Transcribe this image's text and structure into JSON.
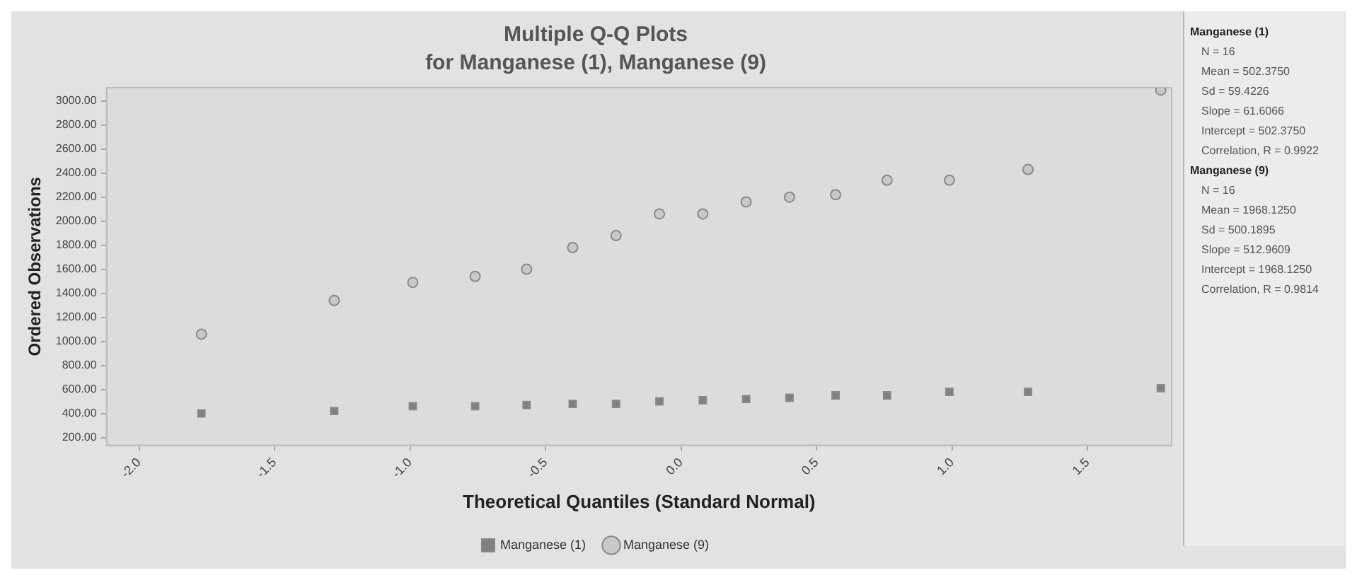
{
  "chart_data": {
    "type": "scatter",
    "title": "Multiple Q-Q Plots",
    "subtitle": "for Manganese (1), Manganese (9)",
    "xlabel": "Theoretical Quantiles (Standard Normal)",
    "ylabel": "Ordered Observations",
    "x": [
      -1.77,
      -1.28,
      -0.99,
      -0.76,
      -0.57,
      -0.4,
      -0.24,
      -0.08,
      0.08,
      0.24,
      0.4,
      0.57,
      0.76,
      0.99,
      1.28,
      1.77
    ],
    "series": [
      {
        "name": "Manganese (1)",
        "color": "#808080",
        "marker": "square",
        "values": [
          400,
          420,
          460,
          460,
          470,
          480,
          480,
          500,
          510,
          520,
          530,
          550,
          550,
          580,
          580,
          610
        ]
      },
      {
        "name": "Manganese (9)",
        "color": "#c8c8c8",
        "marker": "circle",
        "values": [
          1060,
          1340,
          1490,
          1540,
          1600,
          1780,
          1880,
          2060,
          2060,
          2160,
          2200,
          2220,
          2340,
          2340,
          2430,
          3090
        ]
      }
    ],
    "xlim": [
      -2.12,
      1.81
    ],
    "xticks": [
      {
        "value": -2,
        "label": "-2.0"
      },
      {
        "value": -1.5,
        "label": "-1.5"
      },
      {
        "value": -1,
        "label": "-1.0"
      },
      {
        "value": -0.5,
        "label": "-0.5"
      },
      {
        "value": 0,
        "label": "0.0"
      },
      {
        "value": 0.5,
        "label": "0.5"
      },
      {
        "value": 1,
        "label": "1.0"
      },
      {
        "value": 1.5,
        "label": "1.5"
      }
    ],
    "ylim": [
      135,
      3110
    ],
    "yticks": [
      {
        "value": 200,
        "label": "200.00"
      },
      {
        "value": 400,
        "label": "400.00"
      },
      {
        "value": 600,
        "label": "600.00"
      },
      {
        "value": 800,
        "label": "800.00"
      },
      {
        "value": 1000,
        "label": "1000.00"
      },
      {
        "value": 1200,
        "label": "1200.00"
      },
      {
        "value": 1400,
        "label": "1400.00"
      },
      {
        "value": 1600,
        "label": "1600.00"
      },
      {
        "value": 1800,
        "label": "1800.00"
      },
      {
        "value": 2000,
        "label": "2000.00"
      },
      {
        "value": 2200,
        "label": "2200.00"
      },
      {
        "value": 2400,
        "label": "2400.00"
      },
      {
        "value": 2600,
        "label": "2600.00"
      },
      {
        "value": 2800,
        "label": "2800.00"
      },
      {
        "value": 3000,
        "label": "3000.00"
      }
    ],
    "grid": false,
    "legend": "bottom",
    "annotations": [
      "Manganese (1)",
      "N = 16",
      "Mean = 502.3750",
      "Sd = 59.4226",
      "Slope = 61.6066",
      "Intercept = 502.3750",
      "Correlation, R = 0.9922",
      "Manganese (9)",
      "N = 16",
      "Mean = 1968.1250",
      "Sd = 500.1895",
      "Slope = 512.9609",
      "Intercept = 1968.1250",
      "Correlation, R = 0.9814"
    ]
  }
}
